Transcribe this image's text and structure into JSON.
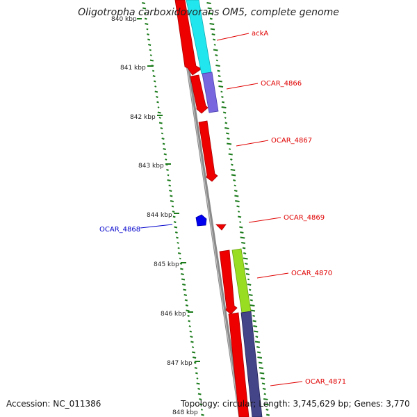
{
  "title": "Oligotropha carboxidovorans OM5, complete genome",
  "accession": "Accession: NC_011386",
  "topology": "Topology: circular; Length: 3,745,629 bp; Genes: 3,770",
  "ticks": [
    "840 kbp",
    "841 kbp",
    "842 kbp",
    "843 kbp",
    "844 kbp",
    "845 kbp",
    "846 kbp",
    "847 kbp",
    "848 kbp"
  ],
  "genes": [
    {
      "label": "ackA",
      "color": "#e00000"
    },
    {
      "label": "OCAR_4866",
      "color": "#e00000"
    },
    {
      "label": "OCAR_4867",
      "color": "#e00000"
    },
    {
      "label": "OCAR_4868",
      "color": "#0000cc"
    },
    {
      "label": "OCAR_4869",
      "color": "#e00000"
    },
    {
      "label": "OCAR_4870",
      "color": "#e00000"
    },
    {
      "label": "OCAR_4871",
      "color": "#e00000"
    }
  ],
  "colors": {
    "backbone": "#8a8a8a",
    "cds": "#ee0000",
    "cds_dark": "#b00000",
    "cyan": "#22e6ee",
    "purple": "#7766dd",
    "lime": "#99dd22",
    "navy": "#444488",
    "blue_gene": "#0000ee",
    "gc_tick": "#1a7a1a"
  }
}
